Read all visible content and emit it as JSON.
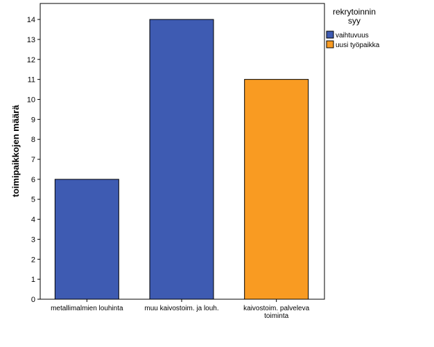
{
  "chart_data": {
    "type": "bar",
    "categories": [
      "metallimalmien louhinta",
      "muu kaivostoim. ja louh.",
      "kaivostoim. palveleva toiminta"
    ],
    "series": [
      {
        "name": "vaihtuvuus",
        "color": "#3E5BB2",
        "values": [
          6,
          14,
          null
        ]
      },
      {
        "name": "uusi työpaikka",
        "color": "#F99B22",
        "values": [
          null,
          null,
          11
        ]
      }
    ],
    "bar_colors": [
      "#3E5BB2",
      "#3E5BB2",
      "#F99B22"
    ],
    "values": [
      6,
      14,
      11
    ],
    "xlabel": "",
    "ylabel": "toimipaikkojen määrä",
    "ylim": [
      0,
      14.8
    ],
    "yticks": [
      0,
      1,
      2,
      3,
      4,
      5,
      6,
      7,
      8,
      9,
      10,
      11,
      12,
      13,
      14
    ],
    "grid": false,
    "legend": {
      "title_lines": [
        "rekrytoinnin",
        "syy"
      ],
      "entries": [
        "vaihtuvuus",
        "uusi työpaikka"
      ],
      "placement": "right"
    }
  }
}
